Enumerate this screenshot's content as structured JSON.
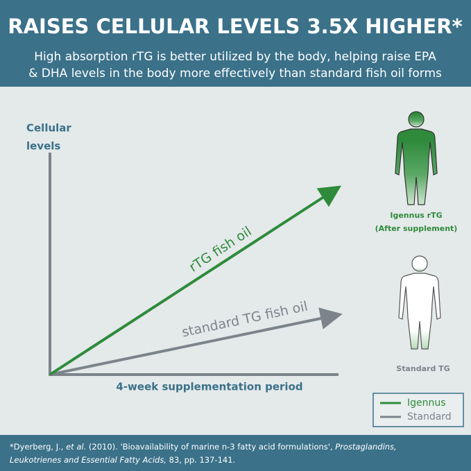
{
  "header": {
    "title": "RAISES CELLULAR LEVELS 3.5X HIGHER*",
    "subtitle": [
      "High absorption rTG  is better utilized by the body, helping raise EPA",
      "& DHA levels in the body more effectively than standard fish oil forms"
    ]
  },
  "diagram": {
    "y_axis_label": [
      "Cellular",
      "levels"
    ],
    "x_axis_label": "4-week supplementation period",
    "lines": [
      {
        "label": "rTG fish oil"
      },
      {
        "label": "standard TG fish oil"
      }
    ],
    "figures": [
      {
        "label": [
          "Igennus rTG",
          "(After supplement)"
        ]
      },
      {
        "label": [
          "Standard TG"
        ]
      }
    ],
    "legend": [
      "Igennus",
      "Standard"
    ]
  },
  "footer": {
    "citation": [
      "*Dyerberg, J., ",
      "et al.",
      " (2010). 'Bioavailability of marine n-3 fatty acid formulations', ",
      "Prostaglandins,",
      "Leukotrienes and Essential Fatty Acids,",
      " 83, pp. 137-141."
    ]
  }
}
